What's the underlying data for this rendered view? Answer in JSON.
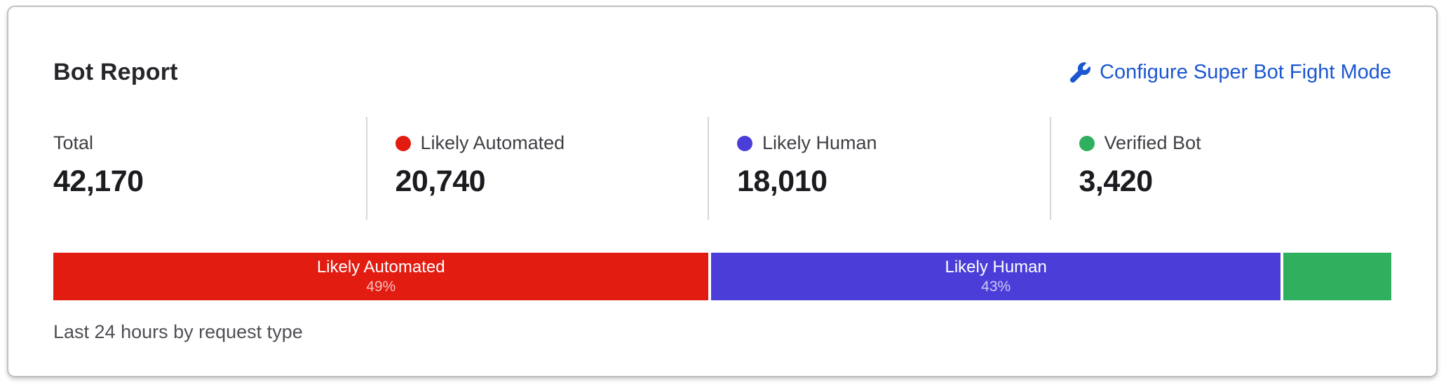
{
  "card": {
    "title": "Bot Report",
    "action_link": {
      "label": "Configure Super Bot Fight Mode",
      "icon": "wrench-icon"
    },
    "stats": [
      {
        "label": "Total",
        "value": "42,170",
        "dot_color": null
      },
      {
        "label": "Likely Automated",
        "value": "20,740",
        "dot_color": "#E21C11"
      },
      {
        "label": "Likely Human",
        "value": "18,010",
        "dot_color": "#4B3DD8"
      },
      {
        "label": "Verified Bot",
        "value": "3,420",
        "dot_color": "#2FB05E"
      }
    ],
    "bar": {
      "segments": [
        {
          "name": "likely-automated",
          "label": "Likely Automated",
          "percent_label": "49%",
          "value": 20740,
          "color": "#E21C11"
        },
        {
          "name": "likely-human",
          "label": "Likely Human",
          "percent_label": "43%",
          "value": 18010,
          "color": "#4B3DD8"
        },
        {
          "name": "verified-bot",
          "label": "",
          "percent_label": "",
          "value": 3420,
          "color": "#2FB05E"
        }
      ]
    },
    "caption": "Last 24 hours by request type"
  },
  "chart_data": {
    "type": "bar",
    "variant": "stacked-horizontal-single-row",
    "title": "Bot Report",
    "categories": [
      "Likely Automated",
      "Likely Human",
      "Verified Bot"
    ],
    "values": [
      20740,
      18010,
      3420
    ],
    "total": 42170,
    "percent_labels": [
      "49%",
      "43%",
      ""
    ],
    "colors": [
      "#E21C11",
      "#4B3DD8",
      "#2FB05E"
    ],
    "caption": "Last 24 hours by request type",
    "legend_position": "top-row-with-values"
  },
  "colors": {
    "link": "#1B57D0",
    "title-text": "#26272B",
    "label-text": "#3F4045",
    "value-text": "#1B1C20",
    "caption-text": "#4E4F54",
    "divider": "#D6D7DB",
    "card-border": "#BDBFC3",
    "percent-text": "rgba(255,255,255,0.72)"
  }
}
